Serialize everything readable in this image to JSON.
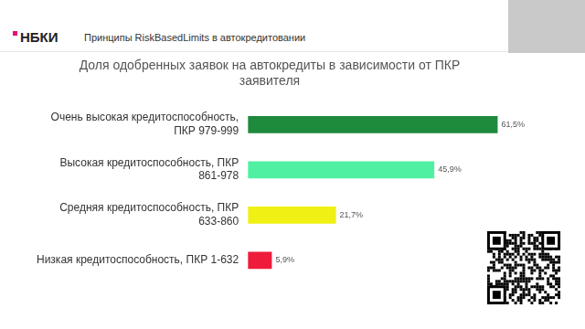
{
  "header": {
    "logo": "НБКИ",
    "title": "Принципы RiskBasedLimits в автокредитовании"
  },
  "chart_data": {
    "type": "bar",
    "orientation": "horizontal",
    "title": "Доля одобренных заявок на автокредиты в зависимости от ПКР заявителя",
    "categories": [
      "Очень высокая кредитоспособность, ПКР 979-999",
      "Высокая кредитоспособность, ПКР 861-978",
      "Средняя кредитоспособность, ПКР 633-860",
      "Низкая кредитоспособность, ПКР 1-632"
    ],
    "values": [
      61.5,
      45.9,
      21.7,
      5.9
    ],
    "value_labels": [
      "61,5%",
      "45,9%",
      "21,7%",
      "5,9%"
    ],
    "colors": [
      "#1e8a3c",
      "#4ff0a2",
      "#f0f014",
      "#ee1b3b"
    ],
    "xlim": [
      0,
      65
    ],
    "grid": false,
    "data_labels": true,
    "tick_labels": "y"
  }
}
